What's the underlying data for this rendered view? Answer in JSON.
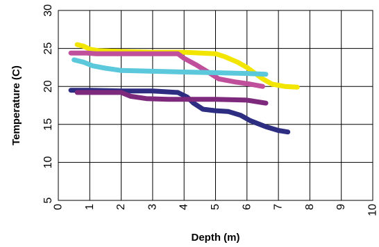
{
  "chart_data": {
    "type": "line",
    "title": "",
    "xlabel": "Depth (m)",
    "ylabel": "Temperature (C)",
    "xlim": [
      0,
      10
    ],
    "ylim": [
      5,
      30
    ],
    "xticks": [
      "0",
      "1",
      "2",
      "3",
      "4",
      "5",
      "6",
      "7",
      "8",
      "9",
      "10"
    ],
    "yticks": [
      "5",
      "10",
      "15",
      "20",
      "25",
      "30"
    ],
    "grid": true,
    "legend": "none",
    "series": [
      {
        "color": "#f2e600",
        "x": [
          0.6,
          0.8,
          1.0,
          1.3,
          2.0,
          3.0,
          4.0,
          5.0,
          5.3,
          5.7,
          6.0,
          6.5,
          6.8,
          7.2,
          7.6
        ],
        "y": [
          25.5,
          25.3,
          24.9,
          24.7,
          24.6,
          24.5,
          24.5,
          24.3,
          23.9,
          23.2,
          22.5,
          21.0,
          20.3,
          20.0,
          19.9
        ]
      },
      {
        "color": "#c0509c",
        "x": [
          0.4,
          0.9,
          1.2,
          2.0,
          3.0,
          3.8,
          4.0,
          4.4,
          4.8,
          5.1,
          5.6,
          6.1,
          6.5
        ],
        "y": [
          24.4,
          24.4,
          24.3,
          24.3,
          24.3,
          24.3,
          23.7,
          22.8,
          21.8,
          21.0,
          20.6,
          20.3,
          20.0
        ]
      },
      {
        "color": "#5bc8dc",
        "x": [
          0.5,
          0.8,
          1.1,
          1.5,
          2.0,
          3.0,
          4.0,
          5.0,
          6.0,
          6.6
        ],
        "y": [
          23.5,
          23.2,
          22.7,
          22.4,
          22.1,
          22.0,
          21.9,
          21.8,
          21.7,
          21.6
        ]
      },
      {
        "color": "#2d2d82",
        "x": [
          0.4,
          1.0,
          2.0,
          3.0,
          3.8,
          4.1,
          4.3,
          4.6,
          5.0,
          5.4,
          5.8,
          6.1,
          6.6,
          7.0,
          7.3
        ],
        "y": [
          19.5,
          19.5,
          19.4,
          19.4,
          19.2,
          18.6,
          17.8,
          17.0,
          16.8,
          16.7,
          16.2,
          15.5,
          14.7,
          14.2,
          14.0
        ]
      },
      {
        "color": "#7d2a7d",
        "x": [
          0.6,
          1.0,
          2.0,
          2.3,
          2.8,
          3.5,
          4.0,
          5.0,
          6.0,
          6.6
        ],
        "y": [
          19.2,
          19.2,
          19.2,
          18.7,
          18.4,
          18.3,
          18.3,
          18.3,
          18.2,
          17.8
        ]
      }
    ]
  }
}
